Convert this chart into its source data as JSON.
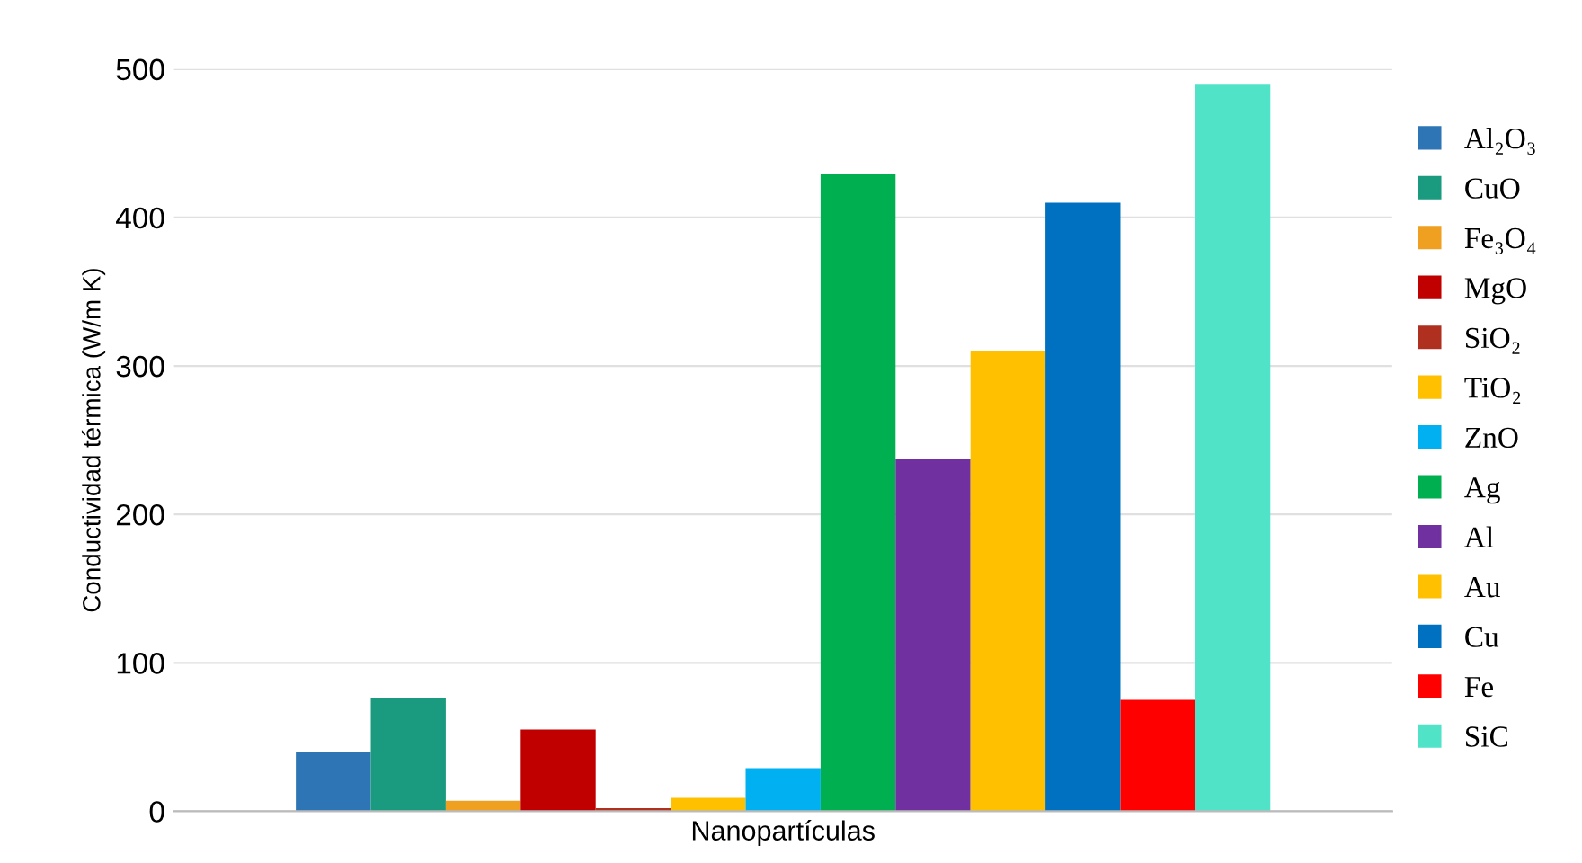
{
  "chart_data": {
    "type": "bar",
    "categories": [
      "Nanopartículas"
    ],
    "ylabel": "Conductividad térmica (W/m K)",
    "ylim": [
      0,
      500
    ],
    "yticks": [
      0,
      100,
      200,
      300,
      400,
      500
    ],
    "grid": "y",
    "legend": "right",
    "series": [
      {
        "name": "Al₂O₃",
        "color": "#2e75b6",
        "values": [
          40
        ]
      },
      {
        "name": "CuO",
        "color": "#1a9a7e",
        "values": [
          76
        ]
      },
      {
        "name": "Fe₃O₄",
        "color": "#f0a020",
        "values": [
          7
        ]
      },
      {
        "name": "MgO",
        "color": "#c00000",
        "values": [
          55
        ]
      },
      {
        "name": "SiO₂",
        "color": "#b03020",
        "values": [
          2
        ]
      },
      {
        "name": "TiO₂",
        "color": "#ffc000",
        "values": [
          9
        ]
      },
      {
        "name": "ZnO",
        "color": "#00b0f0",
        "values": [
          29
        ]
      },
      {
        "name": "Ag",
        "color": "#00b050",
        "values": [
          429
        ]
      },
      {
        "name": "Al",
        "color": "#7030a0",
        "values": [
          237
        ]
      },
      {
        "name": "Au",
        "color": "#ffc000",
        "values": [
          310
        ]
      },
      {
        "name": "Cu",
        "color": "#0070c0",
        "values": [
          410
        ]
      },
      {
        "name": "Fe",
        "color": "#ff0000",
        "values": [
          75
        ]
      },
      {
        "name": "SiC",
        "color": "#50e3c8",
        "values": [
          490
        ]
      }
    ]
  }
}
